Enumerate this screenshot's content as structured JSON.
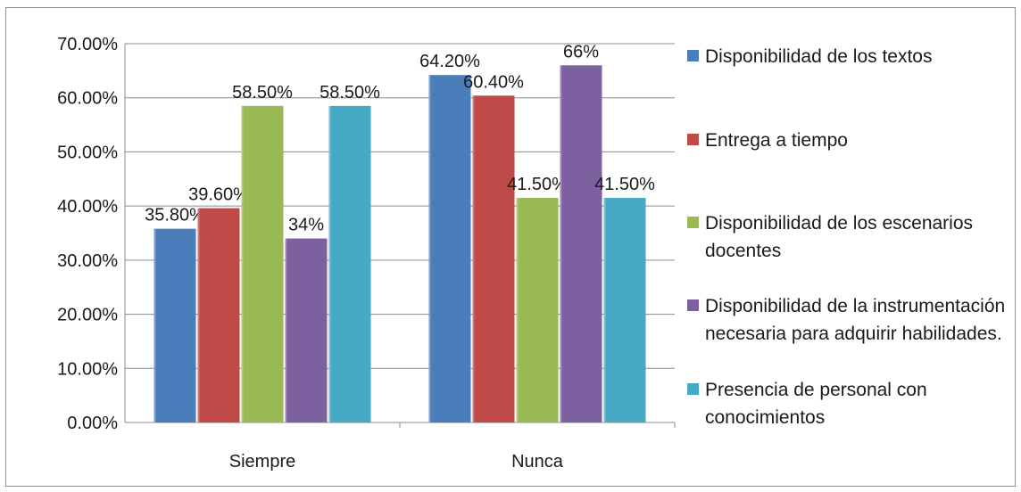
{
  "chart_data": {
    "type": "bar",
    "categories": [
      "Siempre",
      "Nunca"
    ],
    "ylim": [
      0,
      70
    ],
    "yticks": [
      0,
      10,
      20,
      30,
      40,
      50,
      60,
      70
    ],
    "ytick_labels": [
      "0.00%",
      "10.00%",
      "20.00%",
      "30.00%",
      "40.00%",
      "50.00%",
      "60.00%",
      "70.00%"
    ],
    "grid": true,
    "legend_position": "right",
    "series": [
      {
        "name": "Disponibilidad  de los textos",
        "color": "#4a7ebb",
        "values": [
          35.8,
          64.2
        ],
        "labels": [
          "35.80%",
          "64.20%"
        ]
      },
      {
        "name": "Entrega a tiempo",
        "color": "#be4b48",
        "values": [
          39.6,
          60.4
        ],
        "labels": [
          "39.60%",
          "60.40%"
        ]
      },
      {
        "name": "Disponibilidad de los escenarios docentes",
        "color": "#98b954",
        "values": [
          58.5,
          41.5
        ],
        "labels": [
          "58.50%",
          "41.50%"
        ]
      },
      {
        "name": "Disponibilidad de la instrumentación necesaria para adquirir habilidades.",
        "color": "#7d60a0",
        "values": [
          34,
          66
        ],
        "labels": [
          "34%",
          "66%"
        ]
      },
      {
        "name": "Presencia de personal con conocimientos",
        "color": "#46aac5",
        "values": [
          58.5,
          41.5
        ],
        "labels": [
          "58.50%",
          "41.50%"
        ]
      }
    ]
  }
}
